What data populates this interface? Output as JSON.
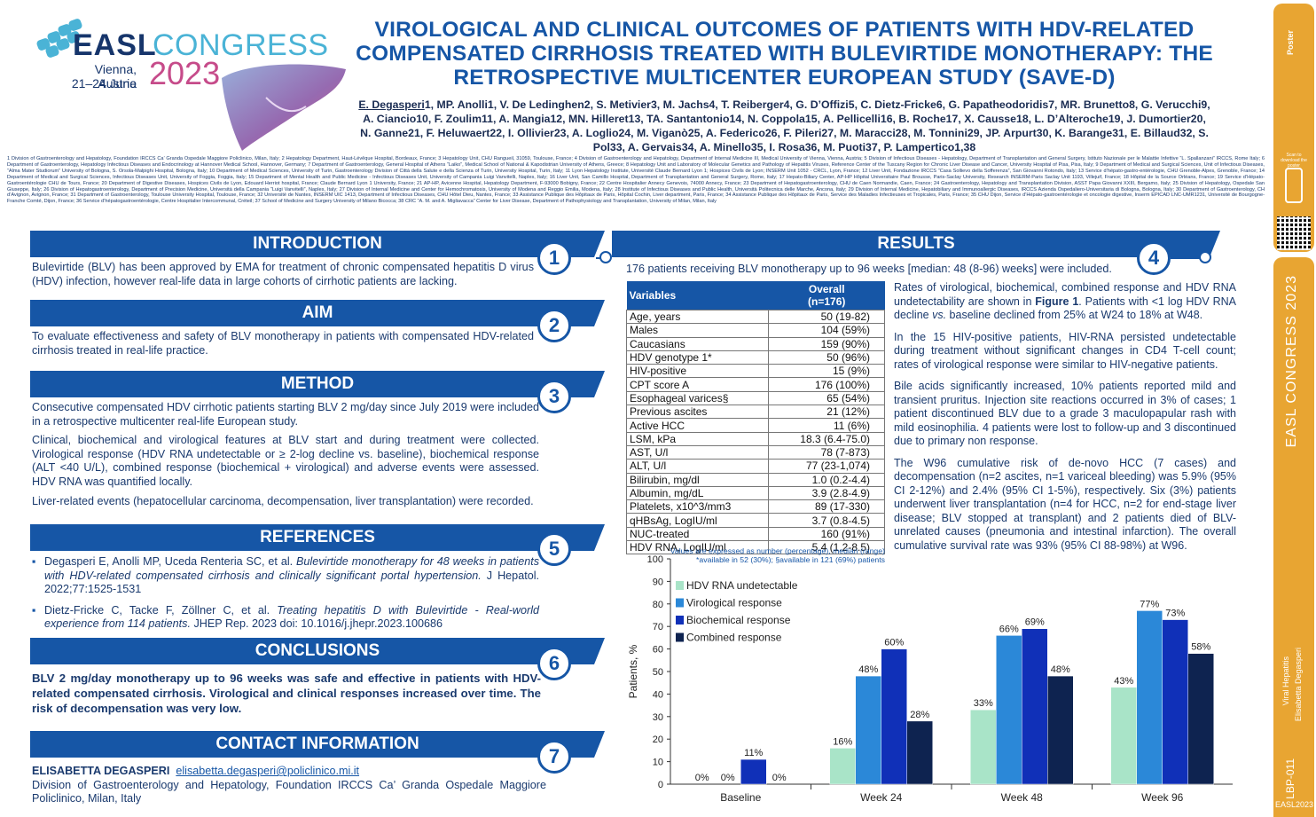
{
  "header": {
    "logo_easl": "EASL",
    "logo_congress": "CONGRESS",
    "logo_city": "Vienna, Austria",
    "logo_dates": "21–24 June",
    "logo_year": "2023",
    "title": "VIROLOGICAL AND CLINICAL OUTCOMES OF PATIENTS WITH HDV-RELATED COMPENSATED CIRRHOSIS TREATED WITH BULEVIRTIDE MONOTHERAPY: THE RETROSPECTIVE MULTICENTER EUROPEAN STUDY (SAVE-D)",
    "first_author": "E. Degasperi",
    "authors_rest": "1, MP. Anolli1, V. De Ledinghen2, S. Metivier3, M. Jachs4, T. Reiberger4, G. D’Offizi5, C. Dietz-Fricke6, G. Papatheodoridis7, MR. Brunetto8, G. Verucchi9, A. Ciancio10, F. Zoulim11, A. Mangia12, MN. Hilleret13, TA. Santantonio14, N. Coppola15, A. Pellicelli16, B. Roche17, X. Causse18, L. D’Alteroche19, J. Dumortier20, N. Ganne21, F. Heluwaert22, I. Ollivier23, A. Loglio24, M. Viganò25, A. Federico26, F. Pileri27, M. Maracci28, M. Tonnini29, JP. Arpurt30, K. Barange31, E. Billaud32, S. Pol33, A. Gervais34, A. Minello35, I. Rosa36, M. Puoti37, P. Lampertico1,38",
    "affiliations": "1 Division of Gastroenterology and Hepatology, Foundation IRCCS Ca’ Granda Ospedale Maggiore Policlinico, Milan, Italy; 2 Hepatology Department, Haut-Lévêque Hospital, Bordeaux, France; 3 Hepatology Unit, CHU Rangueil, 31059, Toulouse, France; 4 Division of Gastroenterology and Hepatology, Department of Internal Medicine III, Medical University of Vienna, Vienna, Austria; 5 Division of Infectious Diseases - Hepatology, Department of Transplantation and General Surgery, Istituto Nazionale per le Malattie Infettive “L. Spallanzani” IRCCS, Rome Italy; 6 Department of Gastroenterology, Hepatology Infectious Diseases and Endocrinology at Hannover Medical School, Hannover, Germany; 7 Department of Gastroenterology, General Hospital of Athens “Laiko”, Medical School of National & Kapodistrian University of Athens, Greece; 8 Hepatology Unit and Laboratory of Molecular Genetics and Pathology of Hepatitis Viruses, Reference Center of the Tuscany Region for Chronic Liver Disease and Cancer, University Hospital of Pisa, Pisa, Italy; 9 Department of Medical and Surgical Sciences, Unit of Infectious Diseases, “Alma Mater Studiorum” University of Bologna, S. Orsola-Malpighi Hospital, Bologna, Italy; 10 Department of Medical Sciences, University of Turin, Gastroenterology Division of Città della Salute e della Scienza of Turin, University Hospital, Turin, Italy; 11 Lyon Hepatology Institute, Université Claude Bernard Lyon 1; Hospices Civils de Lyon; INSERM Unit 1052 - CRCL, Lyon, France; 12 Liver Unit, Fondazione IRCCS “Casa Sollievo della Sofferenza”, San Giovanni Rotondo, Italy; 13 Service d’hépato-gastro-entérologie, CHU Grenoble-Alpes, Grenoble, France; 14 Department of Medical and Surgical Sciences, Infectious Diseases Unit, University of Foggia, Foggia, Italy; 15 Department of Mental Health and Public Medicine - Infectious Diseases Unit, University of Campania Luigi Vanvitelli, Naples, Italy; 16 Liver Unit, San Camillo Hospital, Department of Transplantation and General Surgery, Rome, Italy; 17 Hepato-Biliary Center, AP-HP Hôpital Universitaire Paul Brousse, Paris-Saclay University, Research INSERM-Paris Saclay Unit 1193, Villejuif, France; 18 Hôpital de la Source Orléans, France; 19 Service d’Hépato-Gastroentérologie CHU de Tours, France; 20 Department of Digestive Diseases, Hospices Civils de Lyon, Edouard Herriot hospital, France; Claude Bernard Lyon 1 University, France; 21 AP-HP, Avicenne Hospital, Hepatology Department, F-93000 Bobigny, France; 22 Centre Hospitalier Annecy Genevois, 74000 Annecy, France; 23 Department of Hepatogastroenterology, CHU de Caen Normandie, Caen, France; 24 Gastroenterology, Hepatology and Transplantation Division, ASST Papa Giovanni XXIII, Bergamo, Italy; 25 Division of Hepatology, Ospedale San Giuseppe, Italy; 26 Division of Hepatogastroenterology, Department of Precision Medicine, Università della Campania “Luigi Vanvitelli”, Naples, Italy; 27 Division of Internal Medicine and Center for Hemochromatosis, University of Modena and Reggio Emilia, Modena, Italy; 28 Institute of Infectious Diseases and Public Health, Università Politecnica delle Marche, Ancona, Italy; 29 Division of Internal Medicine, Hepatobiliary and Immunoallergic Diseases, IRCCS Azienda Ospedaliero-Universitaria di Bologna, Bologna, Italy; 30 Department of Gastroenterology, CH d’Avignon, Avignon, France; 31 Department of Gastroenterology, Toulouse University Hospital, Toulouse, France; 32 Université de Nantes, INSERM UIC 1413, Department of Infectious Diseases, CHU Hôtel Dieu, Nantes, France; 33 Assistance Publique des Hôpitaux de Paris, Hôpital Cochin, Liver department, Paris, France; 34 Assistance Publique des Hôpitaux de Paris, Service des Maladies Infectieuses et Tropicales, Paris, France; 35 CHU Dijon, Service d’Hépato-gastroentérologie et oncologie digestive, Inserm EPICAD LNC-UMR1231, Université de Bourgogne-Franche Comté, Dijon, France; 36 Service d’hépatogastroentérologie, Centre Hospitalier Intercommunal, Créteil; 37 School of Medicine and Surgery University of Milano Bicocca; 38 CRC “A. M. and A. Migliavacca” Center for Liver Disease, Department of Pathophysiology and Transplantation, University of Milan, Milan, Italy"
  },
  "strip": {
    "scan_text": "Scan to download the poster",
    "vertical_congress": "EASL CONGRESS 2023",
    "vertical_topic": "Viral Hepatitis",
    "vertical_author": "Elisabetta Degasperi",
    "vertical_code": "LBP-011",
    "bottom_code": "EASL2023"
  },
  "sections": {
    "introduction": {
      "title": "INTRODUCTION",
      "num": "1",
      "text": "Bulevirtide (BLV) has been approved by EMA for treatment of chronic compensated hepatitis D virus (HDV) infection, however real-life data in large cohorts of cirrhotic patients are lacking."
    },
    "aim": {
      "title": "AIM",
      "num": "2",
      "text": "To evaluate effectiveness and safety of BLV monotherapy in patients with compensated HDV-related cirrhosis treated in real-life practice."
    },
    "method": {
      "title": "METHOD",
      "num": "3",
      "p1": "Consecutive compensated HDV cirrhotic patients starting BLV 2 mg/day since July 2019 were included in a retrospective multicenter real-life European study.",
      "p2": "Clinical, biochemical and virological features at BLV start and during treatment were collected. Virological response (HDV RNA undetectable or ≥ 2-log decline vs. baseline), biochemical response (ALT <40 U/L), combined response (biochemical + virological) and adverse events were assessed. HDV RNA was quantified locally.",
      "p3": "Liver-related events (hepatocellular carcinoma, decompensation, liver transplantation) were recorded."
    },
    "references": {
      "title": "REFERENCES",
      "num": "5",
      "r1_a": "Degasperi E, Anolli MP, Uceda Renteria SC, et al. ",
      "r1_b": "Bulevirtide monotherapy for 48 weeks in patients with HDV-related compensated cirrhosis and clinically significant portal hypertension.",
      "r1_c": " J Hepatol. 2022;77:1525-1531",
      "r2_a": "Dietz-Fricke C, Tacke F, Zöllner C, et al. ",
      "r2_b": "Treating hepatitis D with Bulevirtide - Real-world experience from 114 patients.",
      "r2_c": " JHEP Rep. 2023 doi: 10.1016/j.jhepr.2023.100686"
    },
    "conclusions": {
      "title": "CONCLUSIONS",
      "num": "6",
      "text": "BLV 2 mg/day monotherapy up to 96 weeks was safe and effective in patients with HDV-related compensated cirrhosis. Virological and clinical responses increased over time. The risk of decompensation was very low."
    },
    "contact": {
      "title": "CONTACT INFORMATION",
      "num": "7",
      "name": "ELISABETTA DEGASPERI",
      "email": "elisabetta.degasperi@policlinico.mi.it",
      "affil": "Division of Gastroenterology and Hepatology, Foundation IRCCS Ca’ Granda Ospedale Maggiore Policlinico, Milan, Italy"
    },
    "results": {
      "title": "RESULTS",
      "num": "4",
      "intro": "176 patients receiving BLV monotherapy up to 96 weeks [median: 48 (8-96) weeks] were included.",
      "p1_a": "Rates of virological, biochemical, combined response and HDV RNA undetectability are shown in ",
      "p1_b": "Figure 1",
      "p1_c": ". Patients with <1 log HDV RNA decline ",
      "p1_d": "vs.",
      "p1_e": " baseline declined from 25% at W24 to 18% at W48.",
      "p2": "In the 15 HIV-positive patients, HIV-RNA persisted undetectable during treatment without significant changes in CD4 T-cell count; rates of virological response were similar to HIV-negative patients.",
      "p3": "Bile acids significantly increased, 10% patients reported mild and transient pruritus. Injection site reactions occurred in 3% of cases; 1 patient discontinued BLV due to a grade 3 maculopapular rash with mild eosinophilia. 4 patients were lost to follow-up and 3 discontinued due to primary non response.",
      "p4": "The W96 cumulative risk of de-novo HCC (7 cases) and decompensation (n=2 ascites, n=1 variceal bleeding) was 5.9% (95% CI 2-12%) and 2.4% (95% CI 1-5%), respectively. Six (3%) patients underwent liver transplantation (n=4 for HCC, n=2 for end-stage liver disease; BLV stopped at transplant) and 2 patients died of BLV-unrelated causes (pneumonia and intestinal infarction). The overall cumulative survival rate was 93% (95% CI 88-98%) at W96."
    }
  },
  "table": {
    "col1": "Variables",
    "col2_line1": "Overall",
    "col2_line2": "(n=176)",
    "rows": [
      [
        "Age, years",
        "50 (19-82)"
      ],
      [
        "Males",
        "104 (59%)"
      ],
      [
        "Caucasians",
        "159 (90%)"
      ],
      [
        "HDV genotype 1*",
        "50 (96%)"
      ],
      [
        "HIV-positive",
        "15 (9%)"
      ],
      [
        "CPT score A",
        "176 (100%)"
      ],
      [
        "Esophageal varices§",
        "65 (54%)"
      ],
      [
        "Previous ascites",
        "21 (12%)"
      ],
      [
        "Active HCC",
        "11 (6%)"
      ],
      [
        "LSM, kPa",
        "18.3 (6.4-75.0)"
      ],
      [
        "AST, U/l",
        "78 (7-873)"
      ],
      [
        "ALT, U/l",
        "77 (23-1,074)"
      ],
      [
        "Bilirubin, mg/dl",
        "1.0 (0.2-4.4)"
      ],
      [
        "Albumin, mg/dL",
        "3.9 (2.8-4.9)"
      ],
      [
        "Platelets, x10^3/mm3",
        "89 (17-330)"
      ],
      [
        "qHBsAg, LogIU/ml",
        "3.7 (0.8-4.5)"
      ],
      [
        "NUC-treated",
        "160 (91%)"
      ],
      [
        "HDV RNA, LogIU/ml",
        "5.4 (1.2-8.5)"
      ]
    ],
    "note1": "Values are expressed as number (percentage), median (range)",
    "note2": "*available in 52 (30%); §available in 121 (69%) patients"
  },
  "chart_data": {
    "type": "bar",
    "categories": [
      "Baseline",
      "Week 24",
      "Week 48",
      "Week 96"
    ],
    "ylabel": "Patients, %",
    "ylim": [
      0,
      100
    ],
    "yticks": [
      0,
      10,
      20,
      30,
      40,
      50,
      60,
      70,
      80,
      90,
      100
    ],
    "legend_placement": "top-left",
    "series": [
      {
        "name": "HDV RNA undetectable",
        "color": "#a9e4c8",
        "values": [
          0,
          16,
          33,
          43
        ],
        "labels": [
          "0%",
          "16%",
          "33%",
          "43%"
        ]
      },
      {
        "name": "Virological response",
        "color": "#2b88d8",
        "values": [
          0,
          48,
          66,
          77
        ],
        "labels": [
          "0%",
          "48%",
          "66%",
          "77%"
        ]
      },
      {
        "name": "Biochemical response",
        "color": "#1030b8",
        "values": [
          11,
          60,
          69,
          73
        ],
        "labels": [
          "11%",
          "60%",
          "69%",
          "73%"
        ]
      },
      {
        "name": "Combined response",
        "color": "#0e2350",
        "values": [
          0,
          28,
          48,
          58
        ],
        "labels": [
          "0%",
          "28%",
          "48%",
          "58%"
        ]
      }
    ]
  }
}
